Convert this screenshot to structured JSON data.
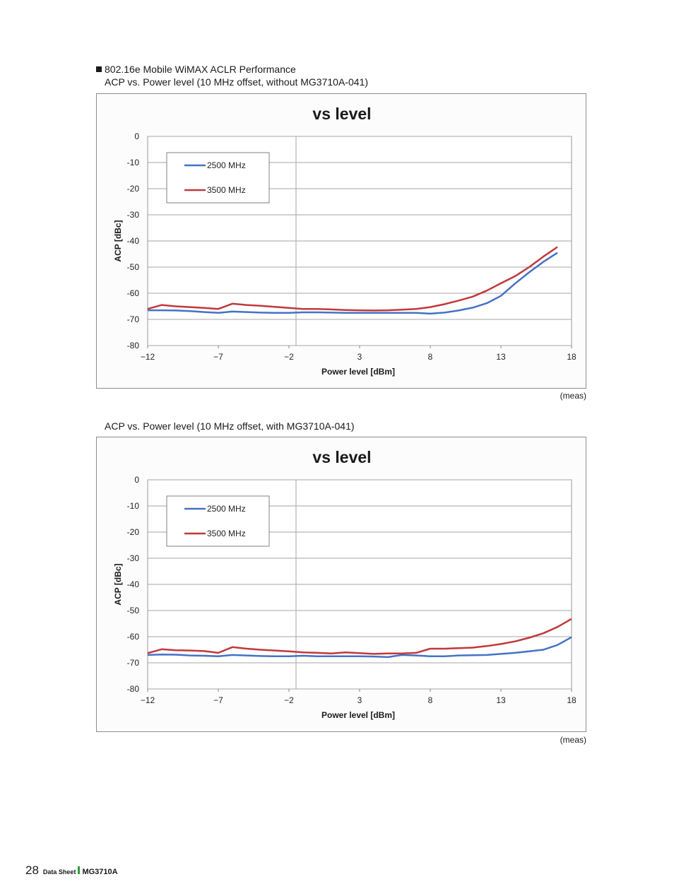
{
  "section": {
    "title": "802.16e Mobile WiMAX ACLR Performance"
  },
  "figures": [
    {
      "subtitle": "ACP vs. Power level (10 MHz offset, without MG3710A-041)",
      "note": "(meas)"
    },
    {
      "subtitle": "ACP vs. Power level (10 MHz offset, with MG3710A-041)",
      "note": "(meas)"
    }
  ],
  "chart_data": [
    {
      "type": "line",
      "title": "vs level",
      "xlabel": "Power level [dBm]",
      "ylabel": "ACP [dBc]",
      "xlim": [
        -12,
        18
      ],
      "ylim": [
        -80,
        0
      ],
      "xticks": [
        -12,
        -7,
        -2,
        3,
        8,
        13,
        18
      ],
      "xtick_labels": [
        "−12",
        "−7",
        "−2",
        "3",
        "8",
        "13",
        "18"
      ],
      "yticks": [
        0,
        -10,
        -20,
        -30,
        -40,
        -50,
        -60,
        -70,
        -80
      ],
      "legend_placement": "top-left",
      "series": [
        {
          "name": "2500 MHz",
          "color": "#4472c4",
          "x": [
            -12,
            -11,
            -10,
            -9,
            -8,
            -7,
            -6,
            -5,
            -4,
            -3,
            -2,
            -1,
            0,
            1,
            2,
            3,
            4,
            5,
            6,
            7,
            8,
            9,
            10,
            11,
            12,
            13,
            14,
            15,
            16,
            17
          ],
          "y": [
            -66.5,
            -66.5,
            -66.6,
            -66.8,
            -67.2,
            -67.5,
            -67.0,
            -67.2,
            -67.4,
            -67.5,
            -67.5,
            -67.3,
            -67.3,
            -67.4,
            -67.5,
            -67.5,
            -67.5,
            -67.5,
            -67.5,
            -67.5,
            -67.8,
            -67.4,
            -66.6,
            -65.5,
            -63.8,
            -61.0,
            -56.3,
            -52.0,
            -48.0,
            -44.5
          ]
        },
        {
          "name": "3500 MHz",
          "color": "#c0393b",
          "x": [
            -12,
            -11,
            -10,
            -9,
            -8,
            -7,
            -6,
            -5,
            -4,
            -3,
            -2,
            -1,
            0,
            1,
            2,
            3,
            4,
            5,
            6,
            7,
            8,
            9,
            10,
            11,
            12,
            13,
            14,
            15,
            16,
            17
          ],
          "y": [
            -66.0,
            -64.5,
            -65.0,
            -65.3,
            -65.6,
            -66.0,
            -64.0,
            -64.5,
            -64.8,
            -65.2,
            -65.6,
            -66.0,
            -66.0,
            -66.2,
            -66.4,
            -66.5,
            -66.6,
            -66.5,
            -66.3,
            -66.0,
            -65.3,
            -64.2,
            -62.8,
            -61.3,
            -59.0,
            -56.2,
            -53.5,
            -50.0,
            -46.0,
            -42.3
          ]
        }
      ]
    },
    {
      "type": "line",
      "title": "vs level",
      "xlabel": "Power level [dBm]",
      "ylabel": "ACP [dBc]",
      "xlim": [
        -12,
        18
      ],
      "ylim": [
        -80,
        0
      ],
      "xticks": [
        -12,
        -7,
        -2,
        3,
        8,
        13,
        18
      ],
      "xtick_labels": [
        "−12",
        "−7",
        "−2",
        "3",
        "8",
        "13",
        "18"
      ],
      "yticks": [
        0,
        -10,
        -20,
        -30,
        -40,
        -50,
        -60,
        -70,
        -80
      ],
      "legend_placement": "top-left",
      "series": [
        {
          "name": "2500 MHz",
          "color": "#4472c4",
          "x": [
            -12,
            -11,
            -10,
            -9,
            -8,
            -7,
            -6,
            -5,
            -4,
            -3,
            -2,
            -1,
            0,
            1,
            2,
            3,
            4,
            5,
            6,
            7,
            8,
            9,
            10,
            11,
            12,
            13,
            14,
            15,
            16,
            17,
            18
          ],
          "y": [
            -67.0,
            -66.8,
            -66.9,
            -67.2,
            -67.3,
            -67.5,
            -67.0,
            -67.2,
            -67.4,
            -67.5,
            -67.5,
            -67.3,
            -67.5,
            -67.5,
            -67.5,
            -67.5,
            -67.6,
            -67.8,
            -67.0,
            -67.2,
            -67.5,
            -67.5,
            -67.2,
            -67.1,
            -67.0,
            -66.6,
            -66.2,
            -65.6,
            -65.0,
            -63.2,
            -60.2
          ]
        },
        {
          "name": "3500 MHz",
          "color": "#c0393b",
          "x": [
            -12,
            -11,
            -10,
            -9,
            -8,
            -7,
            -6,
            -5,
            -4,
            -3,
            -2,
            -1,
            0,
            1,
            2,
            3,
            4,
            5,
            6,
            7,
            8,
            9,
            10,
            11,
            12,
            13,
            14,
            15,
            16,
            17,
            18
          ],
          "y": [
            -66.3,
            -64.8,
            -65.2,
            -65.3,
            -65.5,
            -66.2,
            -64.0,
            -64.6,
            -65.0,
            -65.3,
            -65.6,
            -66.0,
            -66.2,
            -66.4,
            -66.0,
            -66.3,
            -66.6,
            -66.4,
            -66.4,
            -66.2,
            -64.6,
            -64.6,
            -64.4,
            -64.2,
            -63.6,
            -62.8,
            -61.8,
            -60.4,
            -58.7,
            -56.3,
            -53.2
          ]
        }
      ]
    }
  ],
  "footer": {
    "page_number": "28",
    "doc_type": "Data Sheet",
    "model": "MG3710A"
  }
}
